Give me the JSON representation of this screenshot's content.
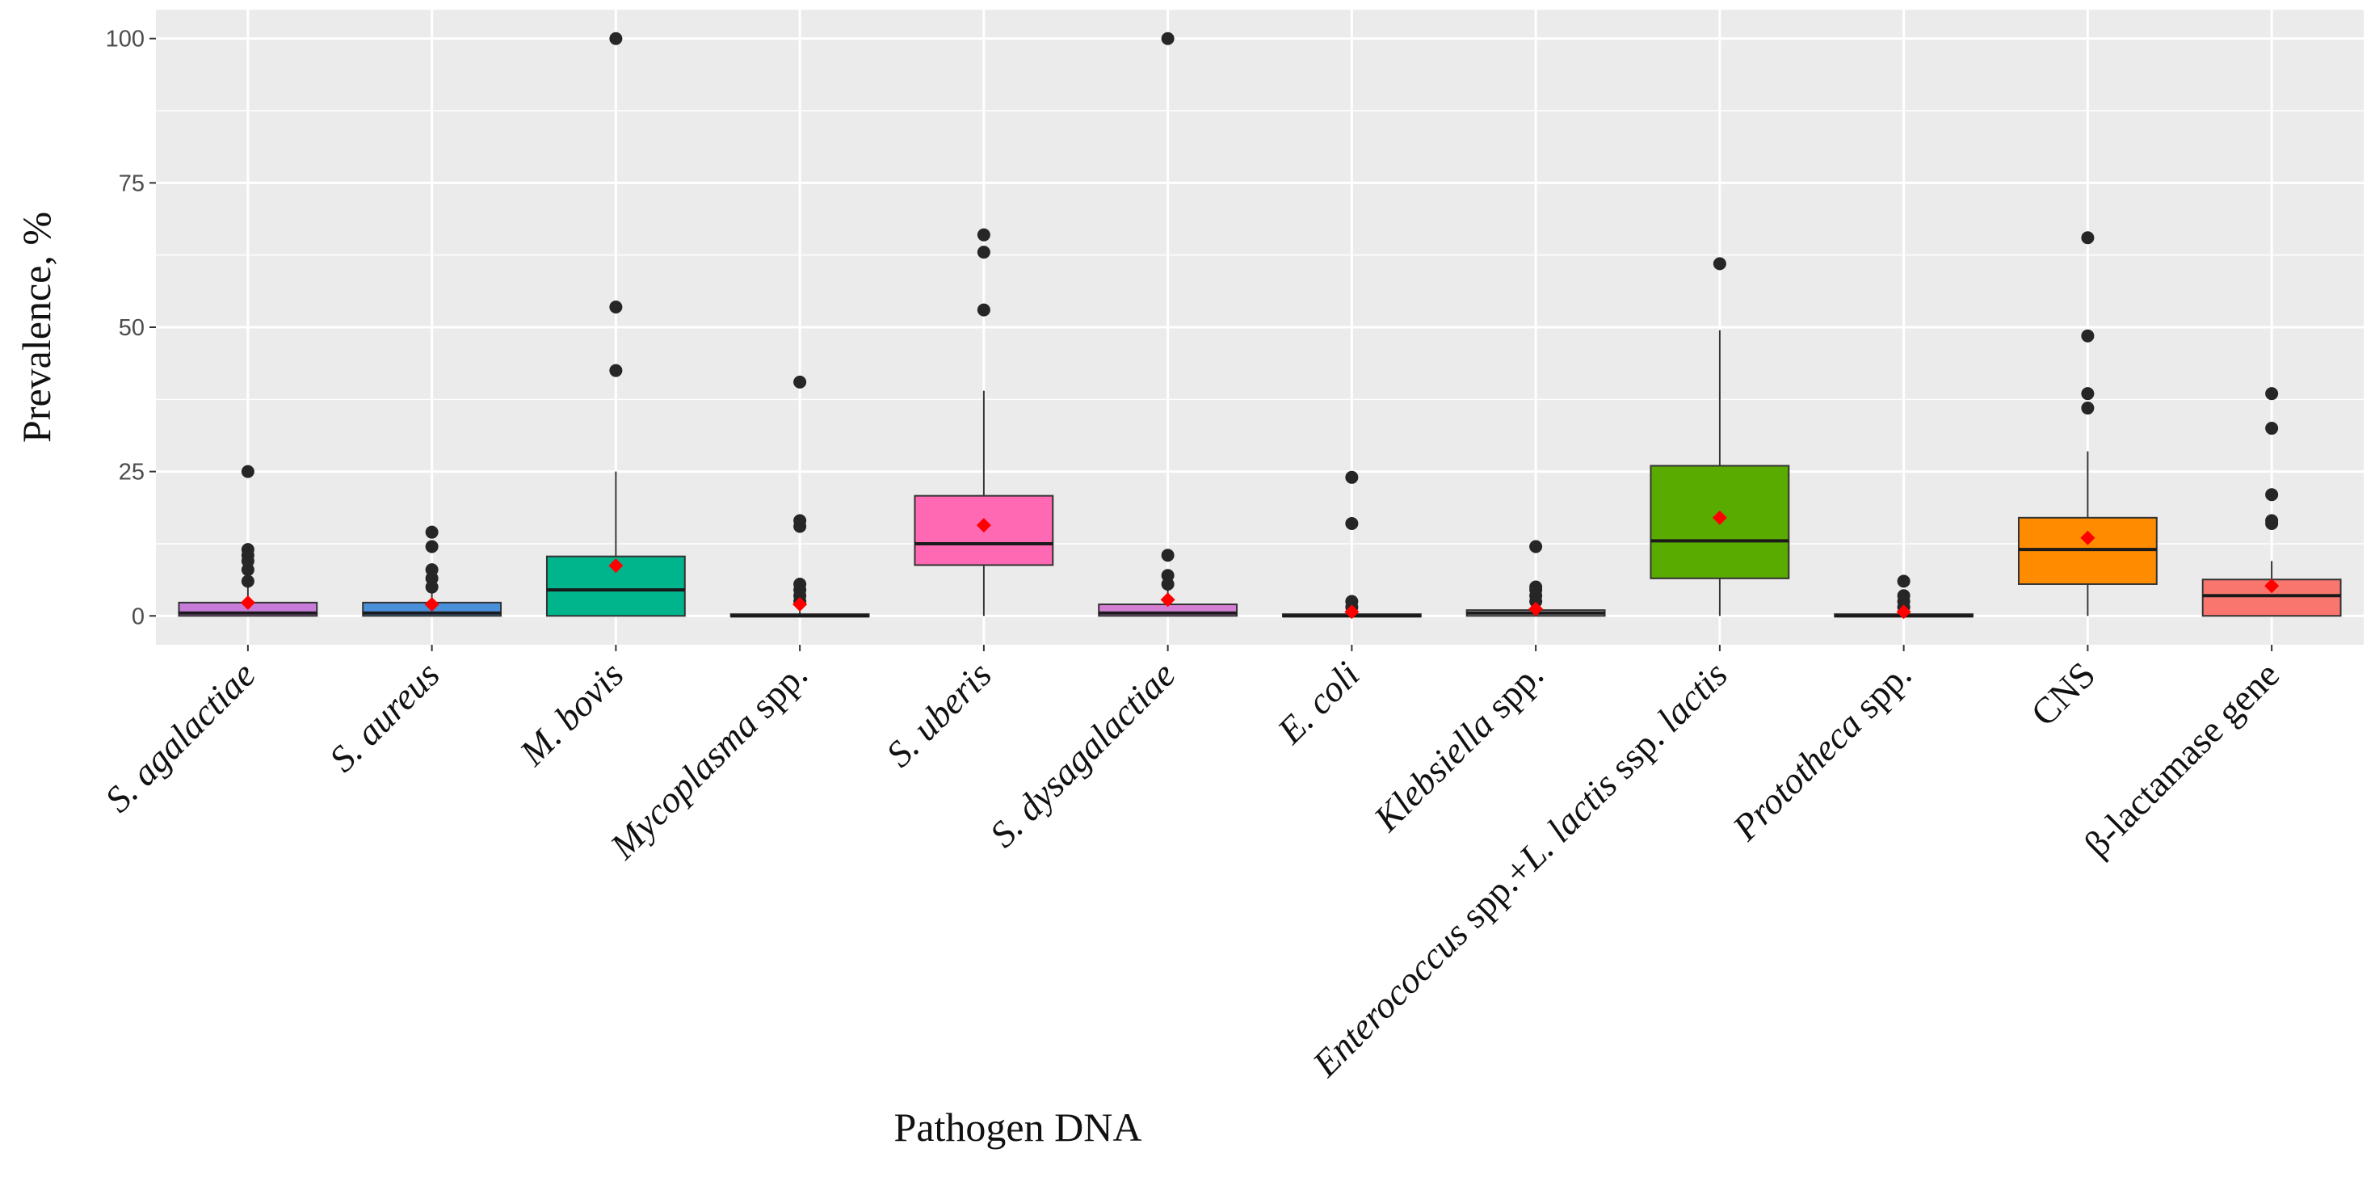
{
  "chart_data": {
    "type": "box",
    "title": "",
    "xlabel": "Pathogen DNA",
    "ylabel": "Prevalence, %",
    "ylim": [
      -5,
      105
    ],
    "yticks": [
      0,
      25,
      50,
      75,
      100
    ],
    "ytick_labels": [
      "0",
      "25",
      "50",
      "75",
      "100"
    ],
    "grid": true,
    "legend": "none",
    "colors": {
      "panel": "#ebebeb",
      "grid": "#ffffff",
      "outline": "#333333",
      "outlier": "#262626",
      "mean_marker": "#ff0000"
    },
    "categories": [
      {
        "label": [
          {
            "t": "S. agalactiae",
            "i": true
          }
        ],
        "fill": "#c77cd9",
        "q1": 0,
        "median": 0.5,
        "q3": 2.3,
        "whisker_low": 0,
        "whisker_high": 5,
        "mean": 2.3,
        "outliers": [
          6,
          8,
          9.5,
          10.5,
          11.5,
          25
        ]
      },
      {
        "label": [
          {
            "t": "S. aureus",
            "i": true
          }
        ],
        "fill": "#4a90d9",
        "q1": 0,
        "median": 0.5,
        "q3": 2.3,
        "whisker_low": 0,
        "whisker_high": 4,
        "mean": 2.0,
        "outliers": [
          5,
          6.5,
          8,
          12,
          14.5
        ]
      },
      {
        "label": [
          {
            "t": "M. bovis",
            "i": true
          }
        ],
        "fill": "#00b48c",
        "q1": 0,
        "median": 4.5,
        "q3": 10.3,
        "whisker_low": 0,
        "whisker_high": 25,
        "mean": 8.7,
        "outliers": [
          42.5,
          53.5,
          100
        ]
      },
      {
        "label": [
          {
            "t": "Mycoplasma",
            "i": true
          },
          {
            "t": " spp.",
            "i": false
          }
        ],
        "fill": "#bdbdbd",
        "q1": 0,
        "median": 0,
        "q3": 0.3,
        "whisker_low": 0,
        "whisker_high": 0.8,
        "mean": 2.0,
        "outliers": [
          2.5,
          3.5,
          4.5,
          5.5,
          15.5,
          16.5,
          40.5
        ]
      },
      {
        "label": [
          {
            "t": "S. uberis",
            "i": true
          }
        ],
        "fill": "#ff69b4",
        "q1": 8.8,
        "median": 12.5,
        "q3": 20.8,
        "whisker_low": 0,
        "whisker_high": 39,
        "mean": 15.7,
        "outliers": [
          53,
          63,
          66
        ]
      },
      {
        "label": [
          {
            "t": "S. dysagalactiae",
            "i": true
          }
        ],
        "fill": "#d47fd4",
        "q1": 0,
        "median": 0.5,
        "q3": 2.0,
        "whisker_low": 0,
        "whisker_high": 4.5,
        "mean": 2.8,
        "outliers": [
          5.5,
          7,
          10.5,
          100
        ]
      },
      {
        "label": [
          {
            "t": "E. coli",
            "i": true
          }
        ],
        "fill": "#bdbdbd",
        "q1": 0,
        "median": 0,
        "q3": 0.3,
        "whisker_low": 0,
        "whisker_high": 0.8,
        "mean": 0.7,
        "outliers": [
          1.5,
          2.5,
          16,
          24
        ]
      },
      {
        "label": [
          {
            "t": "Klebsiella",
            "i": true
          },
          {
            "t": " spp.",
            "i": false
          }
        ],
        "fill": "#bdbdbd",
        "q1": 0,
        "median": 0.5,
        "q3": 1.0,
        "whisker_low": 0,
        "whisker_high": 2,
        "mean": 1.2,
        "outliers": [
          2.5,
          3.5,
          4.5,
          5,
          12
        ]
      },
      {
        "label": [
          {
            "t": "Enterococcus",
            "i": true
          },
          {
            "t": " spp.+",
            "i": false
          },
          {
            "t": "L. lactis",
            "i": true
          },
          {
            "t": " ssp. ",
            "i": false
          },
          {
            "t": "lactis",
            "i": true
          }
        ],
        "fill": "#5aab00",
        "q1": 6.5,
        "median": 13,
        "q3": 26,
        "whisker_low": 0,
        "whisker_high": 49.5,
        "mean": 17,
        "outliers": [
          61
        ]
      },
      {
        "label": [
          {
            "t": "Prototheca",
            "i": true
          },
          {
            "t": " spp.",
            "i": false
          }
        ],
        "fill": "#bdbdbd",
        "q1": 0,
        "median": 0,
        "q3": 0.3,
        "whisker_low": 0,
        "whisker_high": 0.8,
        "mean": 0.7,
        "outliers": [
          1.5,
          2.5,
          3.5,
          6
        ]
      },
      {
        "label": [
          {
            "t": "CNS",
            "i": false
          }
        ],
        "fill": "#ff8c00",
        "q1": 5.5,
        "median": 11.5,
        "q3": 17,
        "whisker_low": 0,
        "whisker_high": 28.5,
        "mean": 13.5,
        "outliers": [
          36,
          38.5,
          48.5,
          65.5
        ]
      },
      {
        "label": [
          {
            "t": "β-lactamase gene",
            "i": false
          }
        ],
        "fill": "#f8766d",
        "q1": 0,
        "median": 3.5,
        "q3": 6.3,
        "whisker_low": 0,
        "whisker_high": 9.5,
        "mean": 5.2,
        "outliers": [
          16,
          16.5,
          21,
          32.5,
          38.5
        ]
      }
    ]
  }
}
